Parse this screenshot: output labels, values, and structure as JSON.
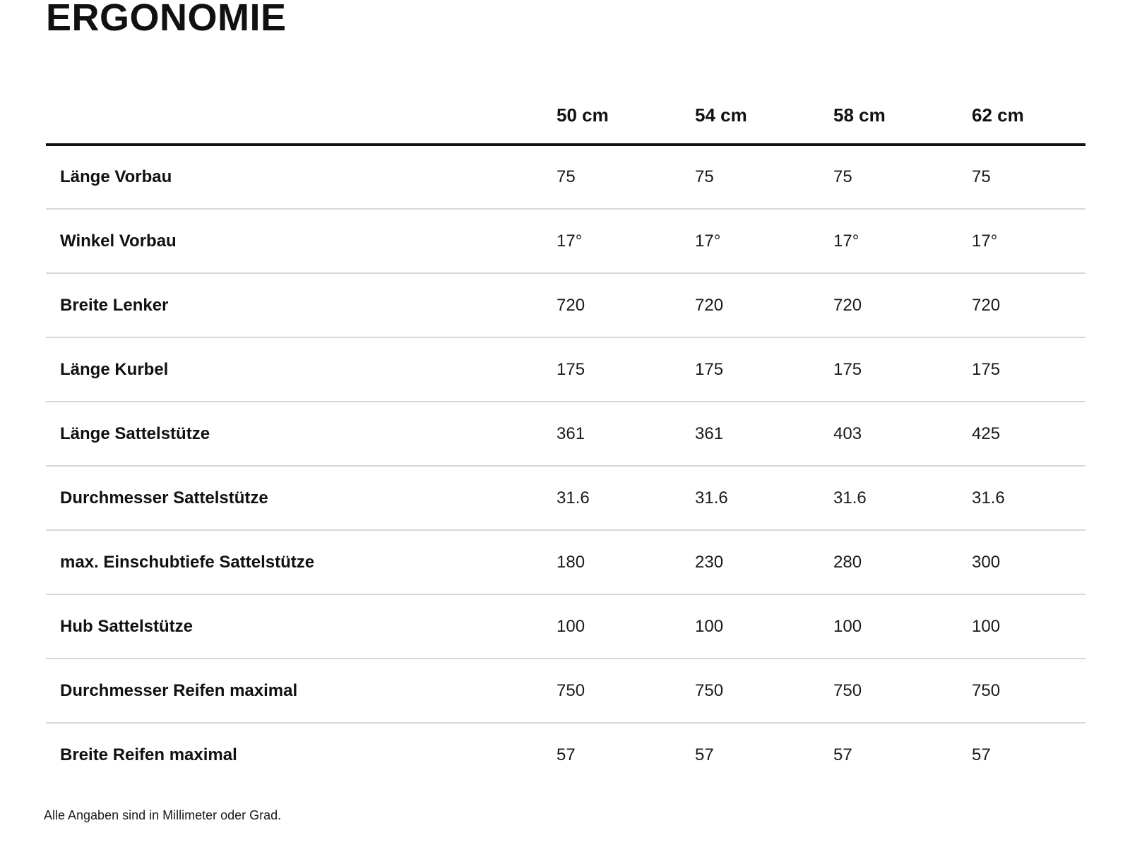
{
  "title": "ERGONOMIE",
  "table": {
    "columns": [
      "50 cm",
      "54 cm",
      "58 cm",
      "62 cm"
    ],
    "rows": [
      {
        "label": "Länge Vorbau",
        "values": [
          "75",
          "75",
          "75",
          "75"
        ]
      },
      {
        "label": "Winkel Vorbau",
        "values": [
          "17°",
          "17°",
          "17°",
          "17°"
        ]
      },
      {
        "label": "Breite Lenker",
        "values": [
          "720",
          "720",
          "720",
          "720"
        ]
      },
      {
        "label": "Länge Kurbel",
        "values": [
          "175",
          "175",
          "175",
          "175"
        ]
      },
      {
        "label": "Länge Sattelstütze",
        "values": [
          "361",
          "361",
          "403",
          "425"
        ]
      },
      {
        "label": "Durchmesser Sattelstütze",
        "values": [
          "31.6",
          "31.6",
          "31.6",
          "31.6"
        ]
      },
      {
        "label": "max. Einschubtiefe Sattelstütze",
        "values": [
          "180",
          "230",
          "280",
          "300"
        ]
      },
      {
        "label": "Hub Sattelstütze",
        "values": [
          "100",
          "100",
          "100",
          "100"
        ]
      },
      {
        "label": "Durchmesser Reifen maximal",
        "values": [
          "750",
          "750",
          "750",
          "750"
        ]
      },
      {
        "label": "Breite Reifen maximal",
        "values": [
          "57",
          "57",
          "57",
          "57"
        ]
      }
    ]
  },
  "footnote": "Alle Angaben sind in Millimeter oder Grad.",
  "colors": {
    "text": "#111111",
    "header_rule": "#111111",
    "row_rule": "#d5d8d9",
    "background": "#ffffff"
  }
}
